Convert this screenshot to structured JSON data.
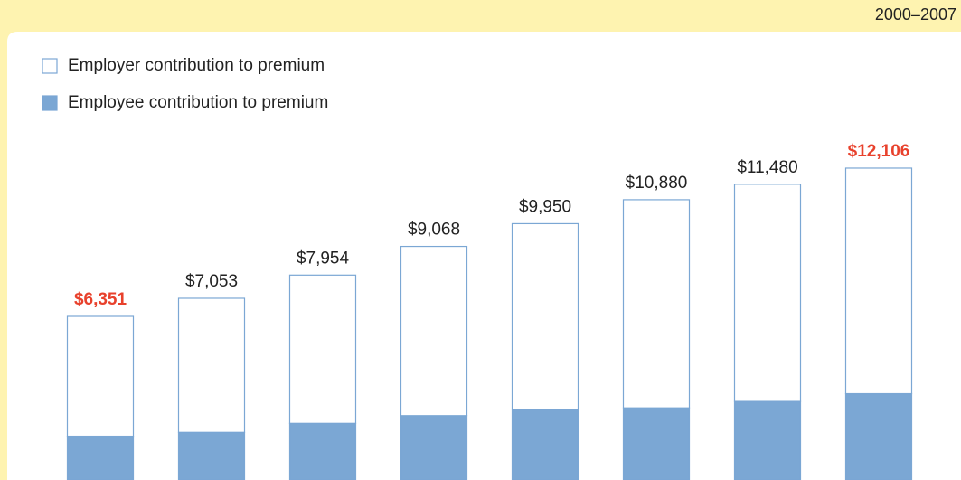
{
  "chart_data": {
    "type": "bar",
    "stacked": true,
    "subtitle": "2000–2007",
    "categories": [
      null,
      null,
      null,
      null,
      null,
      null,
      null,
      null
    ],
    "series": [
      {
        "name": "Employee contribution to premium",
        "color": "#7ba7d4",
        "values": [
          1700,
          1850,
          2200,
          2500,
          2750,
          2800,
          3050,
          3350
        ]
      },
      {
        "name": "Employer contribution to premium",
        "color": "#ffffff",
        "values": [
          4651,
          5203,
          5754,
          6568,
          7200,
          8080,
          8430,
          8756
        ]
      }
    ],
    "totals": {
      "values": [
        6351,
        7053,
        7954,
        9068,
        9950,
        10880,
        11480,
        12106
      ],
      "value_labels": [
        "$6,351",
        "$7,053",
        "$7,954",
        "$9,068",
        "$9,950",
        "$10,880",
        "$11,480",
        "$12,106"
      ],
      "label_colors": [
        "#e8412c",
        "#222222",
        "#222222",
        "#222222",
        "#222222",
        "#222222",
        "#222222",
        "#e8412c"
      ]
    },
    "outline_color": "#7ba7d4",
    "ylim": [
      0,
      14000
    ],
    "grid": false
  }
}
